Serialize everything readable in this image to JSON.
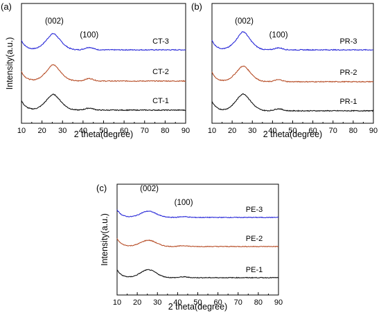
{
  "chart_data": [
    {
      "type": "line",
      "panel_label": "(a)",
      "xlabel": "2 theta(degree)",
      "ylabel": "Intensity(a.u.)",
      "xlim": [
        10,
        90
      ],
      "xticks": [
        "10",
        "20",
        "30",
        "40",
        "50",
        "60",
        "70",
        "80",
        "90"
      ],
      "annotations": [
        {
          "text": "(002)",
          "x": 26
        },
        {
          "text": "(100)",
          "x": 43
        }
      ],
      "series": [
        {
          "name": "CT-3",
          "color": "#2a2ad8",
          "offset": 2,
          "amp": 0.55,
          "sharp": 0.4,
          "bump": 0.1
        },
        {
          "name": "CT-2",
          "color": "#b8502a",
          "offset": 1,
          "amp": 0.55,
          "sharp": 0.4,
          "bump": 0.1
        },
        {
          "name": "CT-1",
          "color": "#111111",
          "offset": 0,
          "amp": 0.55,
          "sharp": 0.3,
          "bump": 0.08
        }
      ]
    },
    {
      "type": "line",
      "panel_label": "(b)",
      "xlabel": "2 theta(degree)",
      "ylabel": "",
      "xlim": [
        10,
        90
      ],
      "xticks": [
        "10",
        "20",
        "30",
        "40",
        "50",
        "60",
        "70",
        "80",
        "90"
      ],
      "annotations": [
        {
          "text": "(002)",
          "x": 26
        },
        {
          "text": "(100)",
          "x": 43
        }
      ],
      "series": [
        {
          "name": "PR-3",
          "color": "#2a2ad8",
          "offset": 2,
          "amp": 0.6,
          "sharp": 0.5,
          "bump": 0.08
        },
        {
          "name": "PR-2",
          "color": "#b8502a",
          "offset": 1,
          "amp": 0.55,
          "sharp": 0.3,
          "bump": 0.08
        },
        {
          "name": "PR-1",
          "color": "#111111",
          "offset": 0,
          "amp": 0.6,
          "sharp": 0.3,
          "bump": 0.08
        }
      ]
    },
    {
      "type": "line",
      "panel_label": "(c)",
      "xlabel": "2 theta(degree)",
      "ylabel": "Intensity(a.u.)",
      "xlim": [
        10,
        90
      ],
      "xticks": [
        "10",
        "20",
        "30",
        "40",
        "50",
        "60",
        "70",
        "80",
        "90"
      ],
      "annotations": [
        {
          "text": "(002)",
          "x": 26
        },
        {
          "text": "(100)",
          "x": 43
        }
      ],
      "series": [
        {
          "name": "PE-3",
          "color": "#2a2ad8",
          "offset": 2,
          "amp": 0.3,
          "sharp": 0.0,
          "bump": 0.04
        },
        {
          "name": "PE-2",
          "color": "#b8502a",
          "offset": 1,
          "amp": 0.3,
          "sharp": 0.0,
          "bump": 0.04
        },
        {
          "name": "PE-1",
          "color": "#111111",
          "offset": 0,
          "amp": 0.38,
          "sharp": 0.0,
          "bump": 0.04
        }
      ]
    }
  ]
}
